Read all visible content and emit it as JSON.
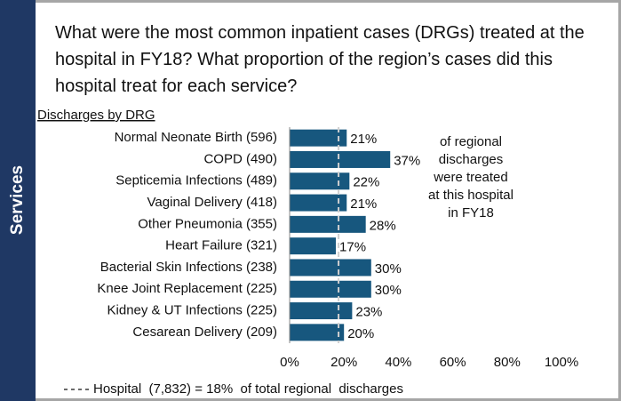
{
  "section": "Services",
  "chart_data": {
    "type": "bar",
    "orientation": "horizontal",
    "title": "What were the most common inpatient cases (DRGs) treated at the hospital in FY18? What proportion of the region’s cases did this hospital treat for each service?",
    "subtitle": "Discharges by DRG",
    "categories": [
      "Normal Neonate Birth (596)",
      "COPD (490)",
      "Septicemia Infections (489)",
      "Vaginal Delivery (418)",
      "Other Pneumonia (355)",
      "Heart Failure (321)",
      "Bacterial Skin Infections (238)",
      "Knee Joint Replacement (225)",
      "Kidney & UT Infections (225)",
      "Cesarean Delivery (209)"
    ],
    "values": [
      21,
      37,
      22,
      21,
      28,
      17,
      30,
      30,
      23,
      20
    ],
    "value_labels": [
      "21%",
      "37%",
      "22%",
      "21%",
      "28%",
      "17%",
      "30%",
      "30%",
      "23%",
      "20%"
    ],
    "color": "#17577e",
    "xlim": [
      0,
      100
    ],
    "xticks": [
      {
        "value": 0,
        "label": "0%"
      },
      {
        "value": 20,
        "label": "20%"
      },
      {
        "value": 40,
        "label": "40%"
      },
      {
        "value": 60,
        "label": "60%"
      },
      {
        "value": 80,
        "label": "80%"
      },
      {
        "value": 100,
        "label": "100%"
      }
    ],
    "reference_line": {
      "value": 18,
      "label": "Hospital  (7,832) = 18%  of total regional  discharges"
    },
    "annotation": [
      "of regional",
      "discharges",
      "were treated",
      "at this hospital",
      "in FY18"
    ]
  }
}
